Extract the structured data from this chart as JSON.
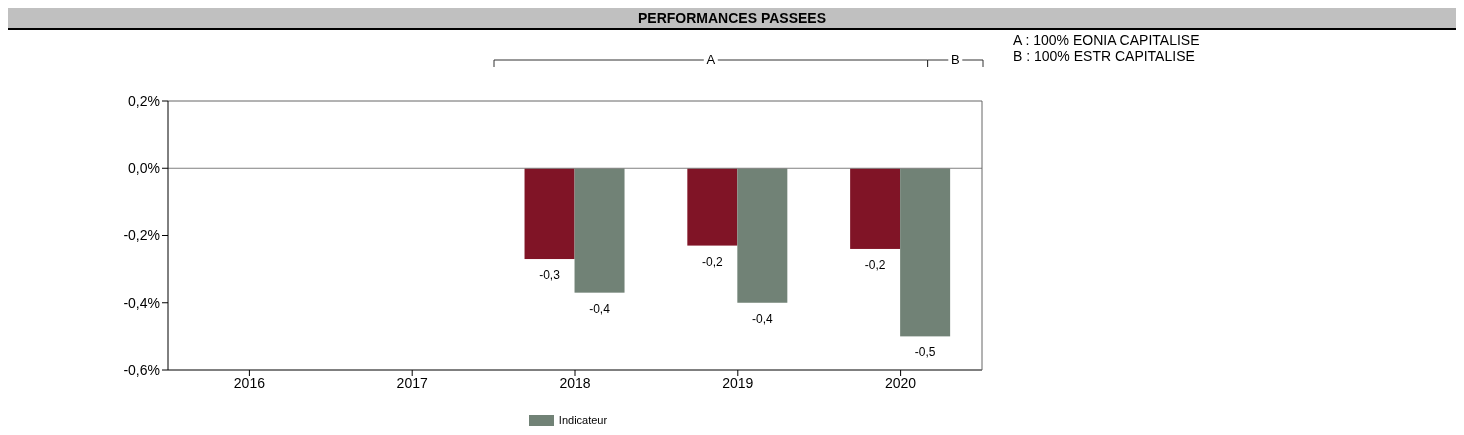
{
  "chart_data": {
    "type": "bar",
    "title": "PERFORMANCES PASSEES",
    "categories": [
      "2016",
      "2017",
      "2018",
      "2019",
      "2020"
    ],
    "series": [
      {
        "color": "#801426",
        "values": [
          null,
          null,
          -0.27,
          -0.23,
          -0.24
        ],
        "value_labels": [
          null,
          null,
          "-0,3",
          "-0,2",
          "-0,2"
        ]
      },
      {
        "name": "Indicateur",
        "color": "#718276",
        "values": [
          null,
          null,
          -0.37,
          -0.4,
          -0.5
        ],
        "value_labels": [
          null,
          null,
          "-0,4",
          "-0,4",
          "-0,5"
        ]
      }
    ],
    "ylim": [
      -0.6,
      0.2
    ],
    "yticks": [
      {
        "value": -0.6,
        "label": "-0,6%"
      },
      {
        "value": -0.4,
        "label": "-0,4%"
      },
      {
        "value": -0.2,
        "label": "-0,2%"
      },
      {
        "value": 0,
        "label": "0,0%"
      },
      {
        "value": 0.2,
        "label": "0,2%"
      }
    ],
    "ref_lines": [
      {
        "axis": "y",
        "value": 0,
        "color": "#808080"
      }
    ],
    "grid": false,
    "legend": "bottom",
    "annotations": [
      "A",
      "B",
      "A : 100% EONIA CAPITALISE",
      "B : 100% ESTR CAPITALISE"
    ]
  }
}
